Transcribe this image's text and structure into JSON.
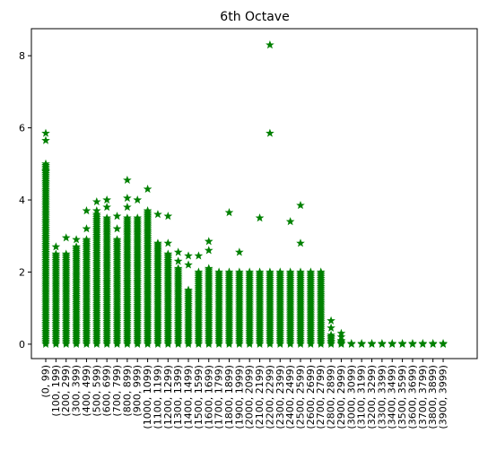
{
  "chart_data": {
    "type": "scatter",
    "title": "6th Octave",
    "xlabel": "",
    "ylabel": "",
    "marker": "star",
    "color": "#008000",
    "ylim": [
      -0.4,
      8.75
    ],
    "yticks": [
      0,
      2,
      4,
      6,
      8
    ],
    "grid": false,
    "categories": [
      "(0, 99)",
      "(100, 199)",
      "(200, 299)",
      "(300, 399)",
      "(400, 499)",
      "(500, 599)",
      "(600, 699)",
      "(700, 799)",
      "(800, 899)",
      "(900, 999)",
      "(1000, 1099)",
      "(1100, 1199)",
      "(1200, 1299)",
      "(1300, 1399)",
      "(1400, 1499)",
      "(1500, 1599)",
      "(1600, 1699)",
      "(1700, 1799)",
      "(1800, 1899)",
      "(1900, 1999)",
      "(2000, 2099)",
      "(2100, 2199)",
      "(2200, 2299)",
      "(2300, 2399)",
      "(2400, 2499)",
      "(2500, 2599)",
      "(2600, 2699)",
      "(2700, 2799)",
      "(2800, 2899)",
      "(2900, 2999)",
      "(3000, 3099)",
      "(3100, 3199)",
      "(3200, 3299)",
      "(3300, 3399)",
      "(3400, 3499)",
      "(3500, 3599)",
      "(3600, 3699)",
      "(3700, 3799)",
      "(3800, 3899)",
      "(3900, 3999)"
    ],
    "dense_max": [
      5.0,
      2.5,
      2.5,
      2.7,
      2.9,
      3.6,
      3.5,
      2.9,
      3.5,
      3.5,
      3.7,
      2.8,
      2.5,
      2.1,
      1.5,
      2.0,
      2.1,
      2.0,
      2.0,
      2.0,
      2.0,
      2.0,
      2.0,
      2.0,
      2.0,
      2.0,
      2.0,
      2.0,
      0.25,
      0.1,
      0.02,
      0.02,
      0.02,
      0.02,
      0.02,
      0.02,
      0.02,
      0.02,
      0.02,
      0.02
    ],
    "outliers": [
      [
        5.85,
        5.65,
        4.8
      ],
      [
        2.7
      ],
      [
        2.95
      ],
      [
        2.9
      ],
      [
        3.7,
        3.2
      ],
      [
        3.95,
        3.7
      ],
      [
        4.0,
        3.8
      ],
      [
        3.55,
        3.2
      ],
      [
        4.55,
        4.05,
        3.8
      ],
      [
        4.0
      ],
      [
        4.3
      ],
      [
        3.6
      ],
      [
        3.55,
        2.8
      ],
      [
        2.55,
        2.3
      ],
      [
        2.45,
        2.2
      ],
      [
        2.45
      ],
      [
        2.85,
        2.6
      ],
      [],
      [
        3.65
      ],
      [
        2.55
      ],
      [],
      [
        3.5
      ],
      [
        8.3,
        5.85
      ],
      [],
      [
        3.4
      ],
      [
        3.85,
        2.8
      ],
      [],
      [],
      [
        0.65,
        0.45
      ],
      [
        0.3,
        0.2
      ],
      [],
      [],
      [],
      [],
      [],
      [],
      [],
      [],
      [],
      []
    ]
  }
}
